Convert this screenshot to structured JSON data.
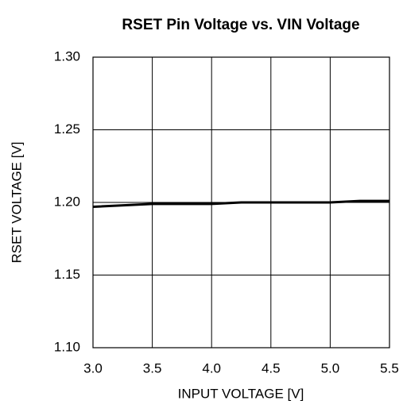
{
  "chart_data": {
    "type": "line",
    "title": "RSET Pin Voltage vs. VIN Voltage",
    "xlabel": "INPUT VOLTAGE [V]",
    "ylabel": "RSET VOLTAGE [V]",
    "x": [
      3.0,
      3.5,
      4.0,
      4.25,
      4.5,
      5.0,
      5.25,
      5.5
    ],
    "values": [
      1.197,
      1.199,
      1.199,
      1.2,
      1.2,
      1.2,
      1.201,
      1.201
    ],
    "color": "#000000",
    "xlim": [
      3.0,
      5.5
    ],
    "xticks": [
      {
        "value": 3,
        "label": "3.0"
      },
      3.5,
      {
        "value": 4,
        "label": "4.0"
      },
      4.5,
      {
        "value": 5,
        "label": "5.0"
      },
      5.5
    ],
    "ylim": [
      1.1,
      1.3
    ],
    "yticks": [
      {
        "value": 1.1,
        "label": "1.10"
      },
      1.15,
      {
        "value": 1.2,
        "label": "1.20"
      },
      1.25,
      {
        "value": 1.3,
        "label": "1.30"
      }
    ],
    "grid": true
  }
}
